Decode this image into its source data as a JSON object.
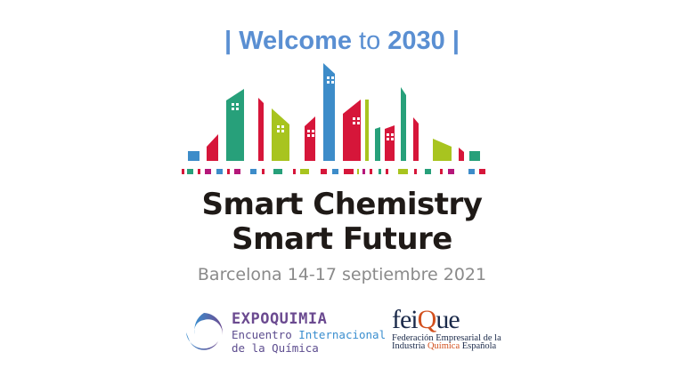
{
  "header": {
    "bar_left": "|",
    "welcome": "Welcome",
    "to": "to",
    "year": "2030",
    "bar_right": "|"
  },
  "title": {
    "line1": "Smart Chemistry",
    "line2": "Smart Future"
  },
  "event": "Barcelona 14-17 septiembre 2021",
  "expoquimia": {
    "name": "EXPOQUIMIA",
    "line2a": "Encuentro",
    "line2b": "Internacional",
    "line3": "de la Química"
  },
  "feique": {
    "name_a": "fei",
    "name_q": "Q",
    "name_b": "ue",
    "line1": "Federación Empresarial de la",
    "line2a": "Industria",
    "line2b": "Química",
    "line2c": "Española"
  },
  "colors": {
    "blue": "#3d8cc9",
    "red": "#d6163a",
    "green": "#27a07a",
    "lime": "#a8c41f",
    "magenta": "#b5177a",
    "welcome": "#5a8fd2"
  }
}
